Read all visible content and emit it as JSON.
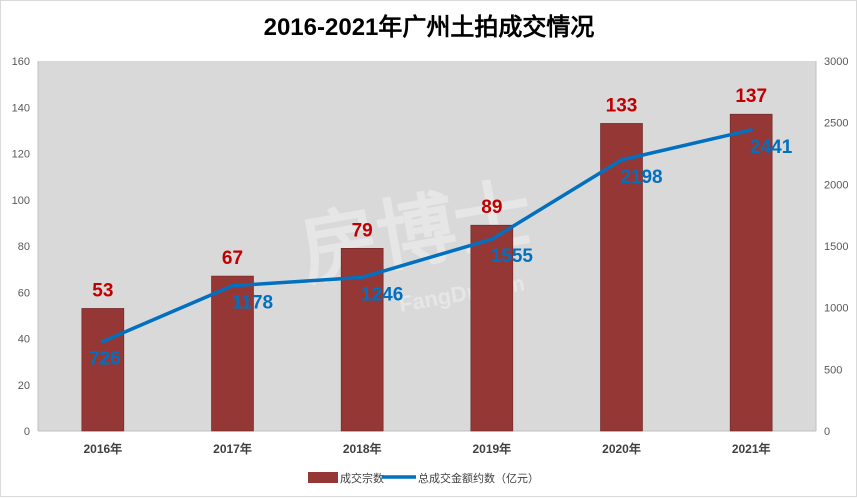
{
  "chart_data": {
    "type": "bar",
    "title": "2016-2021年广州土拍成交情况",
    "categories": [
      "2016年",
      "2017年",
      "2018年",
      "2019年",
      "2020年",
      "2021年"
    ],
    "series": [
      {
        "name": "成交宗数",
        "type": "bar",
        "axis": "left",
        "values": [
          53,
          67,
          79,
          89,
          133,
          137
        ],
        "color": "#953735",
        "label_color": "#c00000"
      },
      {
        "name": "总成交金额约数（亿元）",
        "type": "line",
        "axis": "right",
        "values": [
          726,
          1178,
          1246,
          1555,
          2198,
          2441
        ],
        "color": "#0070c0",
        "label_color": "#0070c0"
      }
    ],
    "y_left": {
      "lim": [
        0,
        160
      ],
      "ticks": [
        0,
        20,
        40,
        60,
        80,
        100,
        120,
        140,
        160
      ]
    },
    "y_right": {
      "lim": [
        0,
        3000
      ],
      "ticks": [
        0,
        500,
        1000,
        1500,
        2000,
        2500,
        3000
      ]
    },
    "grid": false,
    "legend": "bottom",
    "plot_background": "#d9d9d9"
  },
  "watermark": {
    "text": "房博士",
    "sub": "FangDr.com"
  }
}
